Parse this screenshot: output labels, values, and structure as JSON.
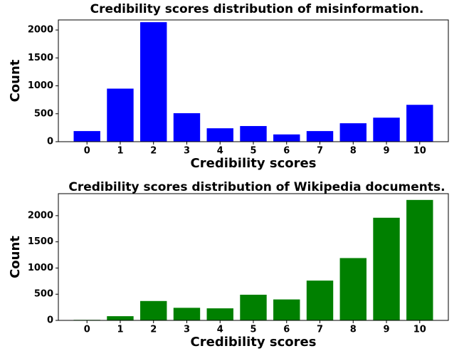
{
  "chart_data": [
    {
      "type": "bar",
      "title": "Credibility scores distribution of misinformation.",
      "x_label": "Credibility scores",
      "y_label": "Count",
      "categories": [
        "0",
        "1",
        "2",
        "3",
        "4",
        "5",
        "6",
        "7",
        "8",
        "9",
        "10"
      ],
      "values": [
        190,
        950,
        2140,
        510,
        240,
        280,
        130,
        190,
        330,
        430,
        660
      ],
      "color": "#0000ff",
      "ylim": [
        0,
        2180
      ],
      "yticks": [
        0,
        500,
        1000,
        1500,
        2000
      ],
      "grid": false
    },
    {
      "type": "bar",
      "title": "Credibility scores distribution of Wikipedia documents.",
      "x_label": "Credibility scores",
      "y_label": "Count",
      "categories": [
        "0",
        "1",
        "2",
        "3",
        "4",
        "5",
        "6",
        "7",
        "8",
        "9",
        "10"
      ],
      "values": [
        10,
        80,
        370,
        240,
        230,
        490,
        400,
        760,
        1190,
        1960,
        2300
      ],
      "color": "#008000",
      "ylim": [
        0,
        2420
      ],
      "yticks": [
        0,
        500,
        1000,
        1500,
        2000
      ],
      "grid": false
    }
  ]
}
